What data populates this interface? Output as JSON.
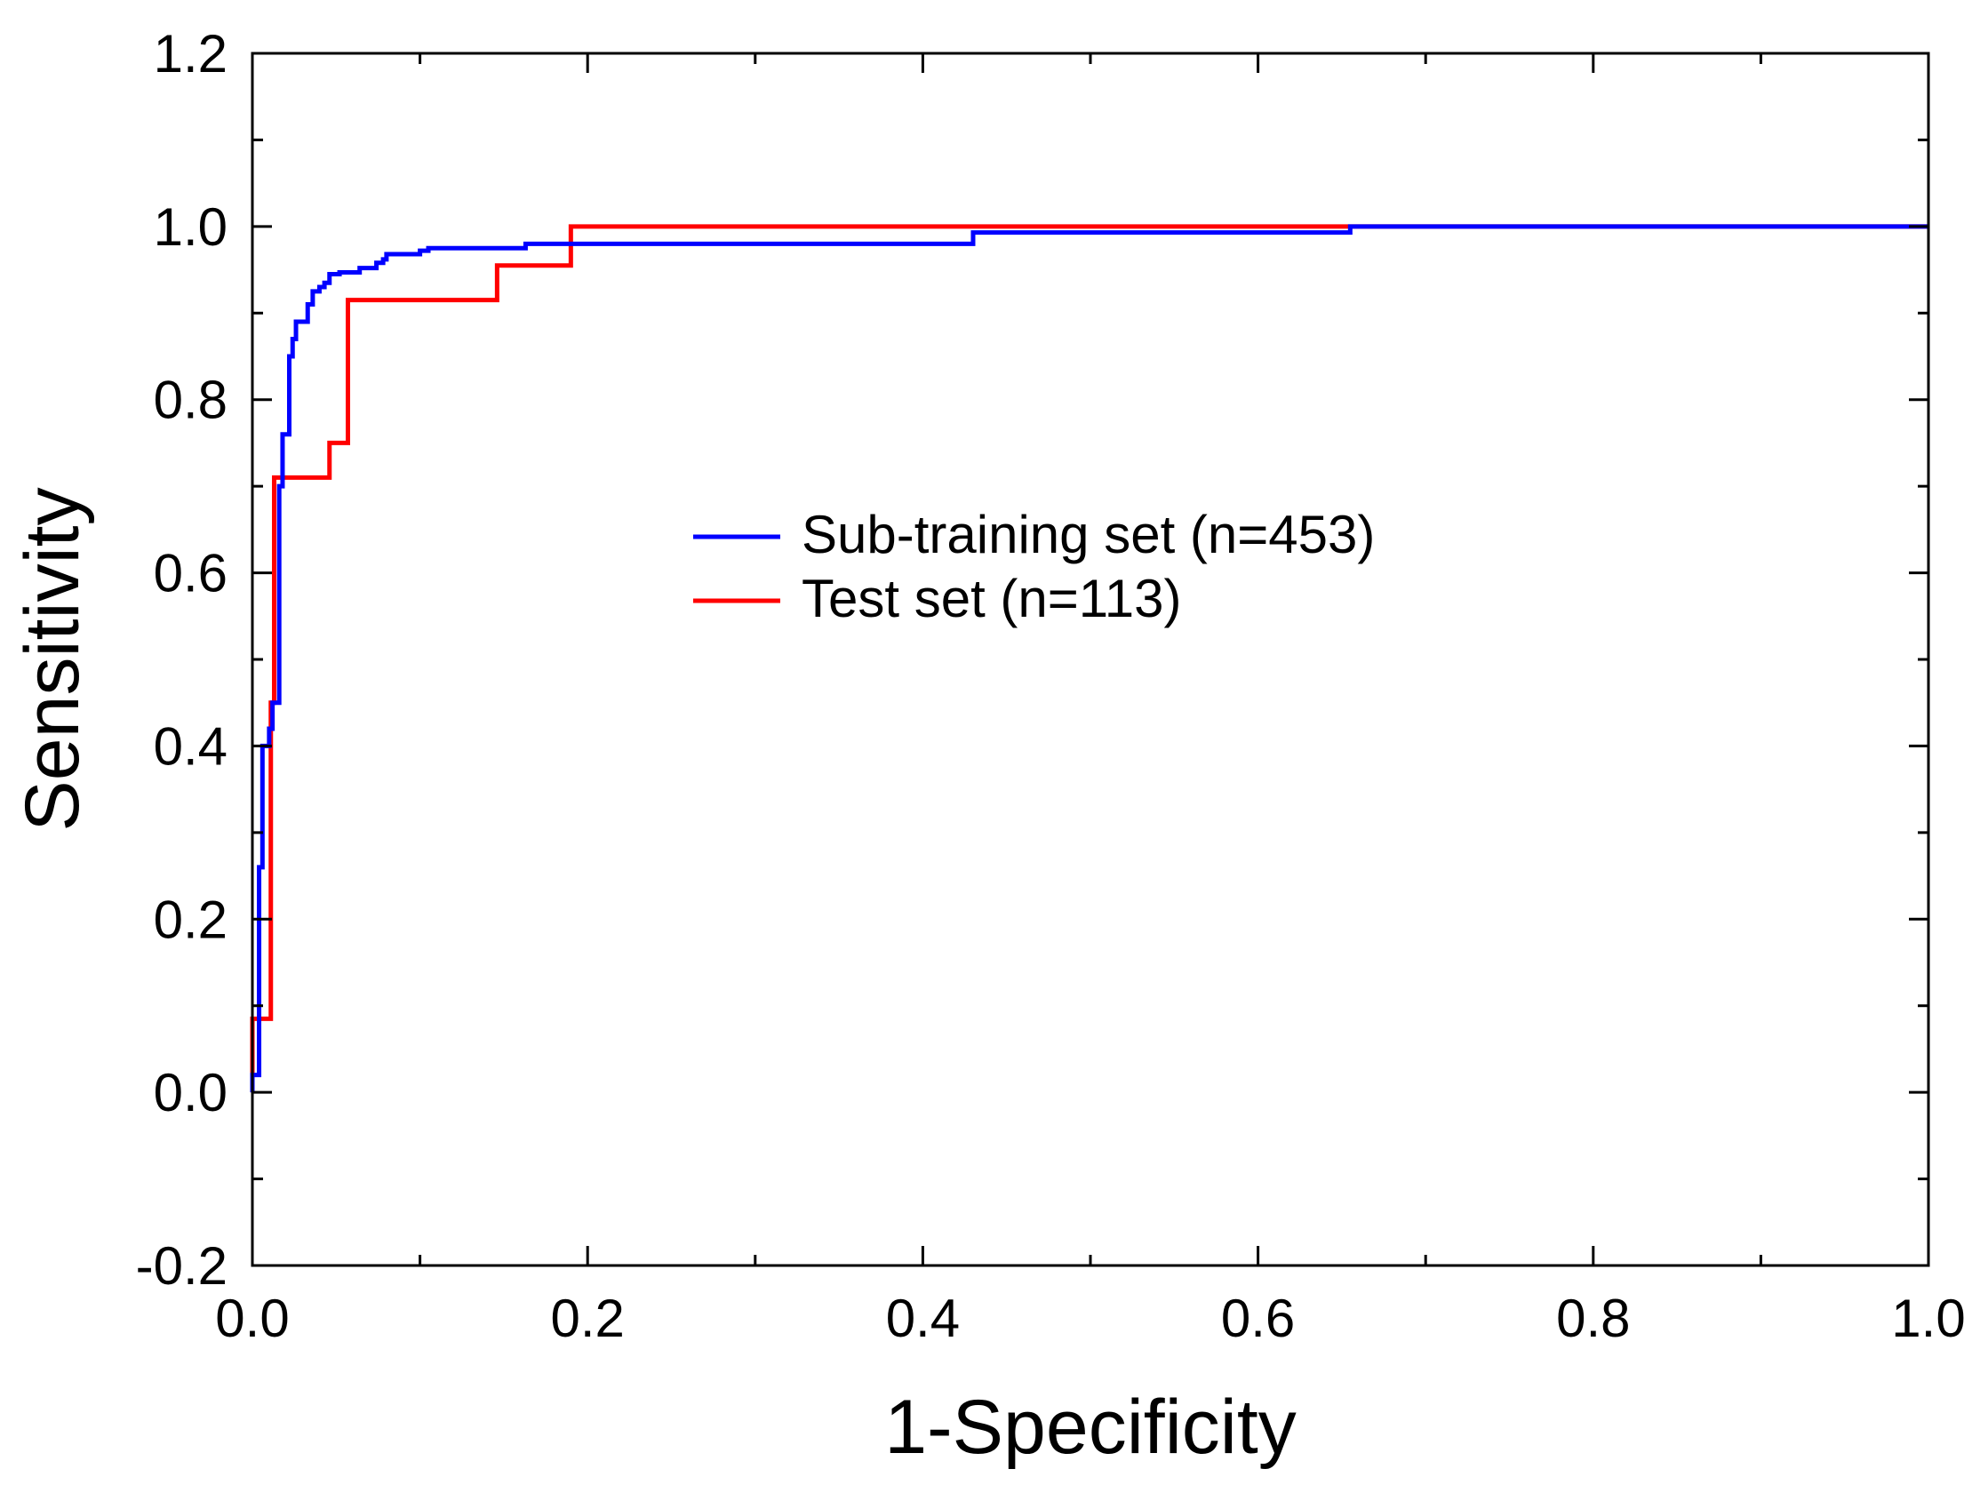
{
  "chart_data": {
    "type": "line",
    "title": "",
    "xlabel": "1-Specificity",
    "ylabel": "Sensitivity",
    "xlim": [
      0.0,
      1.0
    ],
    "ylim": [
      -0.2,
      1.2
    ],
    "x_ticks": [
      0.0,
      0.2,
      0.4,
      0.6,
      0.8,
      1.0
    ],
    "x_tick_labels": [
      "0.0",
      "0.2",
      "0.4",
      "0.6",
      "0.8",
      "1.0"
    ],
    "y_ticks": [
      -0.2,
      0.0,
      0.2,
      0.4,
      0.6,
      0.8,
      1.0,
      1.2
    ],
    "y_tick_labels": [
      "-0.2",
      "0.0",
      "0.2",
      "0.4",
      "0.6",
      "0.8",
      "1.0",
      "1.2"
    ],
    "x_minor_ticks": [
      0.1,
      0.3,
      0.5,
      0.7,
      0.9
    ],
    "y_minor_ticks": [
      -0.1,
      0.1,
      0.3,
      0.5,
      0.7,
      0.9,
      1.1
    ],
    "grid": false,
    "legend_position": "center",
    "series": [
      {
        "name": "Sub-training set (n=453)",
        "color": "#0000ff",
        "points": [
          [
            0.0,
            0.0
          ],
          [
            0.0,
            0.02
          ],
          [
            0.004,
            0.02
          ],
          [
            0.004,
            0.26
          ],
          [
            0.006,
            0.26
          ],
          [
            0.006,
            0.4
          ],
          [
            0.01,
            0.4
          ],
          [
            0.01,
            0.42
          ],
          [
            0.012,
            0.42
          ],
          [
            0.012,
            0.45
          ],
          [
            0.016,
            0.45
          ],
          [
            0.016,
            0.7
          ],
          [
            0.018,
            0.7
          ],
          [
            0.018,
            0.76
          ],
          [
            0.022,
            0.76
          ],
          [
            0.022,
            0.85
          ],
          [
            0.024,
            0.85
          ],
          [
            0.024,
            0.87
          ],
          [
            0.026,
            0.87
          ],
          [
            0.026,
            0.89
          ],
          [
            0.033,
            0.89
          ],
          [
            0.033,
            0.91
          ],
          [
            0.036,
            0.91
          ],
          [
            0.036,
            0.925
          ],
          [
            0.04,
            0.925
          ],
          [
            0.04,
            0.93
          ],
          [
            0.043,
            0.93
          ],
          [
            0.043,
            0.935
          ],
          [
            0.046,
            0.935
          ],
          [
            0.046,
            0.945
          ],
          [
            0.052,
            0.945
          ],
          [
            0.052,
            0.947
          ],
          [
            0.064,
            0.947
          ],
          [
            0.064,
            0.952
          ],
          [
            0.074,
            0.952
          ],
          [
            0.074,
            0.958
          ],
          [
            0.078,
            0.958
          ],
          [
            0.078,
            0.962
          ],
          [
            0.08,
            0.962
          ],
          [
            0.08,
            0.968
          ],
          [
            0.1,
            0.968
          ],
          [
            0.1,
            0.972
          ],
          [
            0.105,
            0.972
          ],
          [
            0.105,
            0.975
          ],
          [
            0.163,
            0.975
          ],
          [
            0.163,
            0.98
          ],
          [
            0.43,
            0.98
          ],
          [
            0.43,
            0.993
          ],
          [
            0.655,
            0.993
          ],
          [
            0.655,
            1.0
          ],
          [
            1.0,
            1.0
          ]
        ]
      },
      {
        "name": "Test set (n=113)",
        "color": "#ff0000",
        "points": [
          [
            0.0,
            0.0
          ],
          [
            0.0,
            0.085
          ],
          [
            0.011,
            0.085
          ],
          [
            0.011,
            0.45
          ],
          [
            0.013,
            0.45
          ],
          [
            0.013,
            0.71
          ],
          [
            0.046,
            0.71
          ],
          [
            0.046,
            0.75
          ],
          [
            0.057,
            0.75
          ],
          [
            0.057,
            0.915
          ],
          [
            0.146,
            0.915
          ],
          [
            0.146,
            0.955
          ],
          [
            0.19,
            0.955
          ],
          [
            0.19,
            1.0
          ],
          [
            1.0,
            1.0
          ]
        ]
      }
    ]
  }
}
